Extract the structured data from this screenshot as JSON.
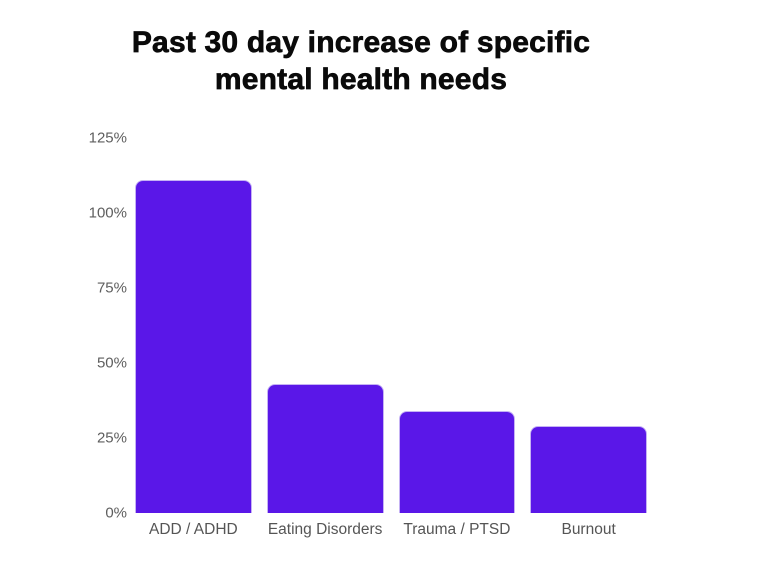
{
  "title": {
    "line1": "Past 30 day increase of specific",
    "line2": "mental health needs"
  },
  "colors": {
    "bar_fill": "#5a17e8",
    "bar_edge": "#c5b2f4",
    "title_text": "#0a0a0a",
    "axis_text": "#5e5e5e",
    "background": "#ffffff"
  },
  "chart_data": {
    "type": "bar",
    "title": "Past 30 day increase of specific mental health needs",
    "categories": [
      "ADD / ADHD",
      "Eating Disorders",
      "Trauma / PTSD",
      "Burnout"
    ],
    "values": [
      111,
      43,
      34,
      29
    ],
    "unit": "%",
    "xlabel": "",
    "ylabel": "",
    "ylim": [
      0,
      125
    ],
    "yticks": [
      0,
      25,
      50,
      75,
      100,
      125
    ],
    "ytick_labels": [
      "0%",
      "25%",
      "50%",
      "75%",
      "100%",
      "125%"
    ],
    "grid": false,
    "legend": false,
    "bar_color": "#5a17e8"
  }
}
